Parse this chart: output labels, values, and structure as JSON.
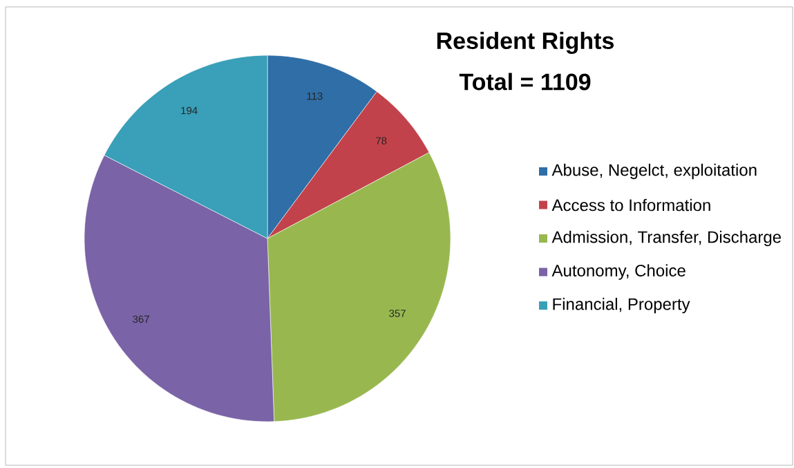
{
  "chart_data": {
    "type": "pie",
    "title": "Resident Rights",
    "subtitle": "Total = 1109",
    "categories": [
      "Abuse, Negelct, exploitation",
      "Access to Information",
      "Admission, Transfer, Discharge",
      "Autonomy, Choice",
      "Financial, Property"
    ],
    "values": [
      113,
      78,
      357,
      367,
      194
    ],
    "colors": [
      "#2f6ea6",
      "#c2424b",
      "#98b84f",
      "#7a63a6",
      "#3a9fb8"
    ],
    "data_labels": true,
    "legend": "right"
  }
}
